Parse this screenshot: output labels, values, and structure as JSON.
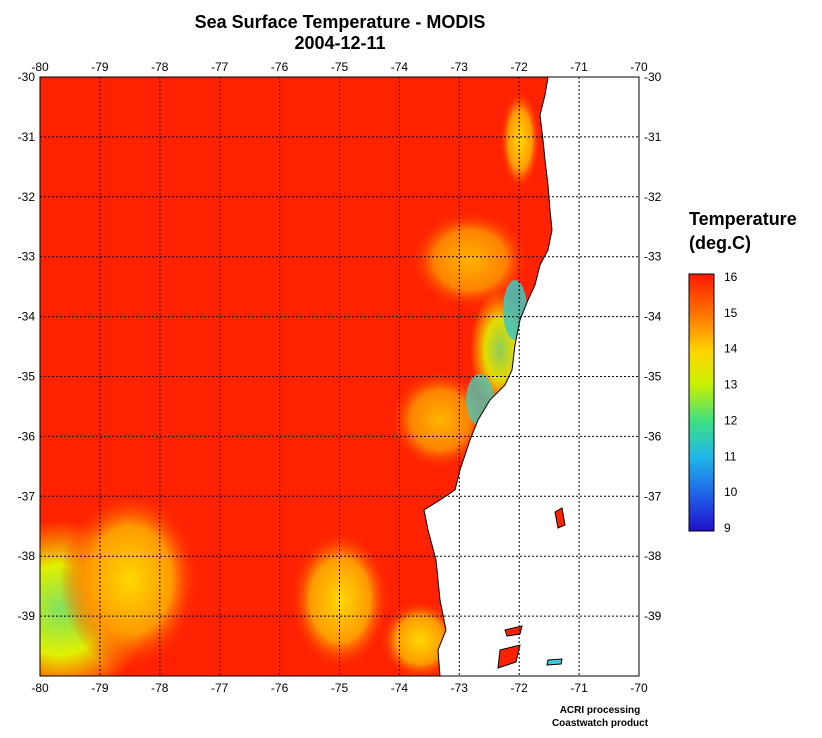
{
  "title": {
    "line1": "Sea Surface Temperature - MODIS",
    "line2": "2004-12-11"
  },
  "axes": {
    "lon_ticks": [
      "-80",
      "-79",
      "-78",
      "-77",
      "-76",
      "-75",
      "-74",
      "-73",
      "-72",
      "-71",
      "-70"
    ],
    "lat_ticks": [
      "-30",
      "-31",
      "-32",
      "-33",
      "-34",
      "-35",
      "-36",
      "-37",
      "-38",
      "-39"
    ]
  },
  "legend": {
    "title_line1": "Temperature",
    "title_line2": "(deg.C)",
    "ticks": [
      "16",
      "15",
      "14",
      "13",
      "12",
      "11",
      "10",
      "9"
    ],
    "min": 9,
    "max": 16,
    "colors": [
      "#ff1a00",
      "#ff6a00",
      "#ffd400",
      "#c8f000",
      "#40e080",
      "#20b8e8",
      "#2060e8",
      "#2010c8"
    ]
  },
  "credits": {
    "line1": "ACRI processing",
    "line2": "Coastwatch product"
  },
  "colors": {
    "sea_warm": "#ff2200",
    "land": "#ffffff",
    "grid": "#000000"
  }
}
